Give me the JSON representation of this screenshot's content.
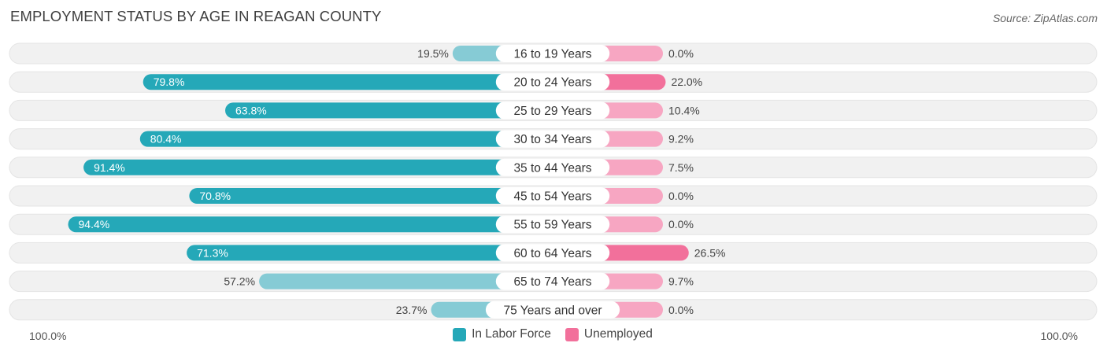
{
  "title": "EMPLOYMENT STATUS BY AGE IN REAGAN COUNTY",
  "source": "Source: ZipAtlas.com",
  "colors": {
    "labor_dark": "#25a8b8",
    "labor_light": "#86cbd5",
    "unemp_dark": "#f2709b",
    "unemp_light": "#f7a6c2",
    "track": "#f1f1f1"
  },
  "legend": {
    "labor": "In Labor Force",
    "unemployed": "Unemployed"
  },
  "axis": {
    "left": "100.0%",
    "right": "100.0%"
  },
  "chart_data": {
    "type": "bar",
    "orientation": "horizontal-diverging",
    "title": "EMPLOYMENT STATUS BY AGE IN REAGAN COUNTY",
    "xlim": [
      -100,
      100
    ],
    "categories": [
      "16 to 19 Years",
      "20 to 24 Years",
      "25 to 29 Years",
      "30 to 34 Years",
      "35 to 44 Years",
      "45 to 54 Years",
      "55 to 59 Years",
      "60 to 64 Years",
      "65 to 74 Years",
      "75 Years and over"
    ],
    "series": [
      {
        "name": "In Labor Force",
        "values": [
          19.5,
          79.8,
          63.8,
          80.4,
          91.4,
          70.8,
          94.4,
          71.3,
          57.2,
          23.7
        ],
        "labels": [
          "19.5%",
          "79.8%",
          "63.8%",
          "80.4%",
          "91.4%",
          "70.8%",
          "94.4%",
          "71.3%",
          "57.2%",
          "23.7%"
        ]
      },
      {
        "name": "Unemployed",
        "values": [
          0.0,
          22.0,
          10.4,
          9.2,
          7.5,
          0.0,
          0.0,
          26.5,
          9.7,
          0.0
        ],
        "labels": [
          "0.0%",
          "22.0%",
          "10.4%",
          "9.2%",
          "7.5%",
          "0.0%",
          "0.0%",
          "26.5%",
          "9.7%",
          "0.0%"
        ]
      }
    ]
  }
}
